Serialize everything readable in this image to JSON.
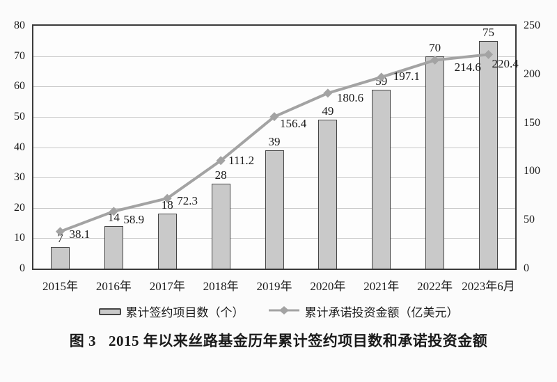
{
  "figure": {
    "caption_label": "图 3",
    "caption_text": "2015 年以来丝路基金历年累计签约项目数和承诺投资金额"
  },
  "chart_data": {
    "type": "bar",
    "subtype": "combo-bar-line-dual-axis",
    "title": "图 3 2015 年以来丝路基金历年累计签约项目数和承诺投资金额",
    "categories": [
      "2015年",
      "2016年",
      "2017年",
      "2018年",
      "2019年",
      "2020年",
      "2021年",
      "2022年",
      "2023年6月"
    ],
    "series": [
      {
        "name": "累计签约项目数（个）",
        "type": "bar",
        "axis": "left",
        "values": [
          7,
          14,
          18,
          28,
          39,
          49,
          59,
          70,
          75
        ]
      },
      {
        "name": "累计承诺投资金额（亿美元）",
        "type": "line",
        "axis": "right",
        "values": [
          38.1,
          58.9,
          72.3,
          111.2,
          156.4,
          180.6,
          197.1,
          214.6,
          220.4
        ]
      }
    ],
    "axes": {
      "left": {
        "min": 0,
        "max": 80,
        "ticks": [
          0,
          10,
          20,
          30,
          40,
          50,
          60,
          70,
          80
        ]
      },
      "right": {
        "min": 0,
        "max": 250,
        "ticks": [
          0,
          50,
          100,
          150,
          200,
          250
        ]
      }
    },
    "grid": true,
    "legend_position": "bottom",
    "colors": {
      "bar_fill": "#c9c9c9",
      "bar_border": "#454545",
      "line": "#a3a3a3",
      "grid": "#c9c9c9",
      "frame": "#3b3b3b",
      "text": "#1a1a1a",
      "background": "#fbfbfb"
    }
  }
}
